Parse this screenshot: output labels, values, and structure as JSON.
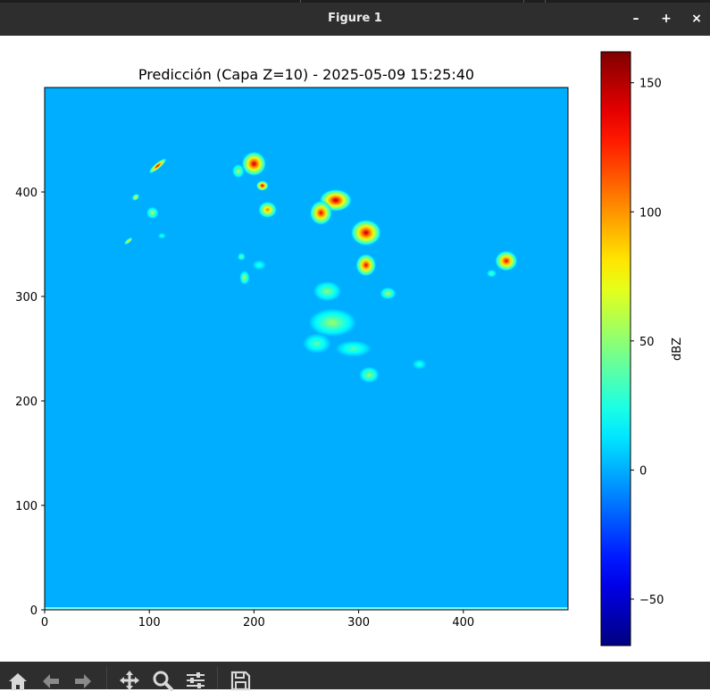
{
  "window": {
    "title": "Figure 1",
    "minimize_icon": "minimize-icon",
    "maximize_icon": "maximize-icon",
    "close_icon": "close-icon",
    "minimize_label": "–",
    "maximize_label": "+",
    "close_label": "×"
  },
  "toolbar": {
    "items": [
      "home-icon",
      "back-arrow-icon",
      "forward-arrow-icon",
      "pan-icon",
      "zoom-icon",
      "configure-subplots-icon",
      "save-icon"
    ]
  },
  "chart_data": {
    "type": "heatmap",
    "title": "Predicción (Capa Z=10) - 2025-05-09 15:25:40",
    "xlabel": "",
    "ylabel": "",
    "xlim": [
      0,
      500
    ],
    "ylim": [
      0,
      500
    ],
    "xticks": [
      0,
      100,
      200,
      300,
      400
    ],
    "yticks": [
      0,
      100,
      200,
      300,
      400
    ],
    "background_value": 0,
    "colormap": "jet",
    "colorbar": {
      "label": "dBZ",
      "min": -68,
      "max": 162,
      "ticks": [
        -50,
        0,
        50,
        100,
        150
      ]
    },
    "cells": [
      {
        "x": 108,
        "y": 425,
        "rx": 11,
        "ry": 3,
        "angle": -40,
        "peak": 150
      },
      {
        "x": 87,
        "y": 395,
        "rx": 4,
        "ry": 3,
        "angle": -40,
        "peak": 85
      },
      {
        "x": 80,
        "y": 353,
        "rx": 5,
        "ry": 2,
        "angle": -40,
        "peak": 95
      },
      {
        "x": 103,
        "y": 380,
        "rx": 6,
        "ry": 6,
        "angle": 0,
        "peak": 60
      },
      {
        "x": 112,
        "y": 358,
        "rx": 4,
        "ry": 3,
        "angle": 0,
        "peak": 30
      },
      {
        "x": 200,
        "y": 427,
        "rx": 12,
        "ry": 12,
        "angle": -30,
        "peak": 150
      },
      {
        "x": 185,
        "y": 420,
        "rx": 6,
        "ry": 7,
        "angle": 0,
        "peak": 60
      },
      {
        "x": 208,
        "y": 406,
        "rx": 6,
        "ry": 5,
        "angle": 0,
        "peak": 150
      },
      {
        "x": 213,
        "y": 383,
        "rx": 9,
        "ry": 8,
        "angle": 0,
        "peak": 110
      },
      {
        "x": 191,
        "y": 318,
        "rx": 5,
        "ry": 7,
        "angle": 0,
        "peak": 60
      },
      {
        "x": 188,
        "y": 338,
        "rx": 4,
        "ry": 4,
        "angle": 0,
        "peak": 45
      },
      {
        "x": 205,
        "y": 330,
        "rx": 7,
        "ry": 5,
        "angle": 0,
        "peak": 30
      },
      {
        "x": 278,
        "y": 392,
        "rx": 16,
        "ry": 11,
        "angle": 0,
        "peak": 155
      },
      {
        "x": 264,
        "y": 380,
        "rx": 11,
        "ry": 12,
        "angle": 0,
        "peak": 140
      },
      {
        "x": 307,
        "y": 361,
        "rx": 15,
        "ry": 13,
        "angle": 0,
        "peak": 150
      },
      {
        "x": 307,
        "y": 330,
        "rx": 10,
        "ry": 11,
        "angle": 0,
        "peak": 140
      },
      {
        "x": 328,
        "y": 303,
        "rx": 8,
        "ry": 6,
        "angle": 0,
        "peak": 60
      },
      {
        "x": 270,
        "y": 305,
        "rx": 14,
        "ry": 10,
        "angle": 0,
        "peak": 50
      },
      {
        "x": 275,
        "y": 275,
        "rx": 24,
        "ry": 14,
        "angle": 0,
        "peak": 55
      },
      {
        "x": 260,
        "y": 255,
        "rx": 14,
        "ry": 10,
        "angle": 0,
        "peak": 40
      },
      {
        "x": 295,
        "y": 250,
        "rx": 18,
        "ry": 8,
        "angle": 0,
        "peak": 38
      },
      {
        "x": 310,
        "y": 225,
        "rx": 10,
        "ry": 8,
        "angle": 0,
        "peak": 55
      },
      {
        "x": 358,
        "y": 235,
        "rx": 7,
        "ry": 5,
        "angle": 0,
        "peak": 30
      },
      {
        "x": 441,
        "y": 334,
        "rx": 11,
        "ry": 10,
        "angle": 0,
        "peak": 140
      },
      {
        "x": 427,
        "y": 322,
        "rx": 5,
        "ry": 4,
        "angle": 0,
        "peak": 40
      }
    ]
  }
}
